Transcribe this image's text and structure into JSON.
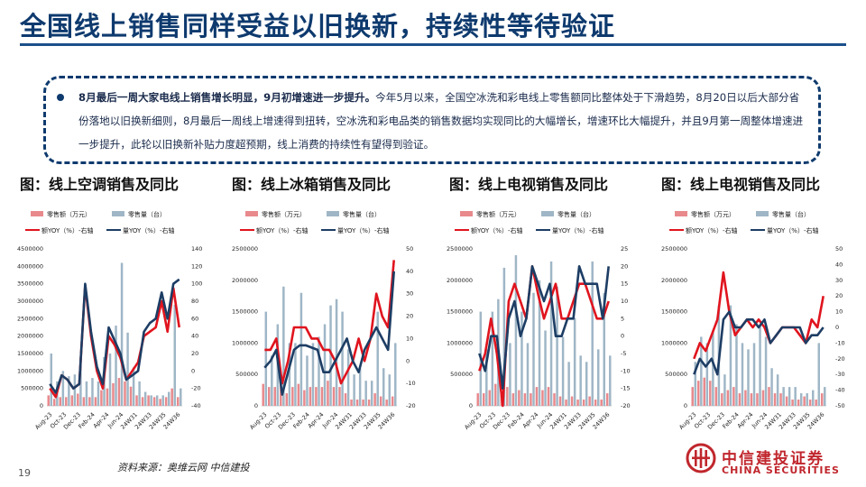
{
  "page": {
    "title": "全国线上销售同样受益以旧换新，持续性等待验证",
    "summary_lead": "8月最后一周大家电线上销售增长明显，9月初增速进一步提升。",
    "summary_body": "今年5月以来，全国空冰洗和彩电线上零售额同比整体处于下滑趋势，8月20日以后大部分省份落地以旧换新细则，8月最后一周线上增速得到扭转，空冰洗和彩电品类的销售数据均实现同比的大幅增长，增速环比大幅提升，并且9月第一周整体增速进一步提升，此轮以旧换新补贴力度超预期，线上消费的持续性有望得到验证。",
    "source": "资料来源：奥维云网    中信建投",
    "page_number": "19",
    "logo_cn": "中信建投证券",
    "logo_en": "CHINA SECURITIES"
  },
  "colors": {
    "title": "#0e3a6e",
    "amount_bar": "#e8898c",
    "volume_bar": "#9fb6c6",
    "amount_yoy_line": "#e0141e",
    "volume_yoy_line": "#1d3d64",
    "brand": "#c0272d"
  },
  "chart_data": [
    {
      "type": "bar",
      "title": "图：线上空调销售及同比",
      "legend": [
        "零售额（万元）",
        "零售量（台）",
        "额YOY（%）-右轴",
        "量YOY（%）-右轴"
      ],
      "x_tick_labels": [
        "Aug-23",
        "Oct-23",
        "Dec-23",
        "Feb-24",
        "Apr-24",
        "Jun-24",
        "24W31",
        "24W33",
        "24W35",
        "24W36"
      ],
      "ylim_left": [
        0,
        4500000
      ],
      "yticks_left": [
        0,
        500000,
        1000000,
        1500000,
        2000000,
        2500000,
        3000000,
        3500000,
        4000000,
        4500000
      ],
      "ylim_right": [
        -40,
        140
      ],
      "yticks_right": [
        -40,
        -20,
        0,
        20,
        40,
        60,
        80,
        100,
        120,
        140
      ],
      "series": [
        {
          "name": "零售额（万元）",
          "axis": "left",
          "kind": "bar",
          "values": [
            300000,
            200000,
            250000,
            250000,
            300000,
            350000,
            250000,
            250000,
            250000,
            450000,
            500000,
            650000,
            800000,
            700000,
            550000,
            300000,
            250000,
            300000,
            250000,
            200000,
            250000,
            500000,
            250000
          ]
        },
        {
          "name": "零售量（台）",
          "axis": "left",
          "kind": "bar",
          "values": [
            1500000,
            700000,
            1000000,
            850000,
            900000,
            1400000,
            700000,
            800000,
            700000,
            1400000,
            1500000,
            2300000,
            4100000,
            2100000,
            1100000,
            700000,
            400000,
            300000,
            300000,
            300000,
            400000,
            2900000,
            500000
          ]
        },
        {
          "name": "额YOY（%）-右轴",
          "axis": "right",
          "kind": "line",
          "values": [
            -20,
            -30,
            -5,
            -10,
            -20,
            -15,
            98,
            40,
            0,
            -20,
            40,
            30,
            15,
            -10,
            0,
            10,
            40,
            45,
            50,
            80,
            45,
            95,
            50
          ]
        },
        {
          "name": "量YOY（%）-右轴",
          "axis": "right",
          "kind": "line",
          "values": [
            -15,
            -25,
            -5,
            -10,
            -20,
            -15,
            100,
            45,
            5,
            -15,
            50,
            35,
            20,
            -10,
            -5,
            0,
            45,
            55,
            60,
            90,
            60,
            100,
            105
          ]
        }
      ]
    },
    {
      "type": "bar",
      "title": "图：线上冰箱销售及同比",
      "legend": [
        "零售额（万元）",
        "零售量（台）",
        "额YOY（%）-右轴",
        "量YOY（%）-右轴"
      ],
      "x_tick_labels": [
        "Aug-23",
        "Oct-23",
        "Dec-23",
        "Feb-24",
        "Apr-24",
        "Jun-24",
        "24W31",
        "24W33",
        "24W35",
        "24W36"
      ],
      "ylim_left": [
        0,
        2500000
      ],
      "yticks_left": [
        0,
        500000,
        1000000,
        1500000,
        2000000,
        2500000
      ],
      "ylim_right": [
        -20,
        50
      ],
      "yticks_right": [
        -20,
        -10,
        0,
        10,
        20,
        30,
        40,
        50
      ],
      "series": [
        {
          "name": "零售额（万元）",
          "axis": "left",
          "kind": "bar",
          "values": [
            350000,
            300000,
            300000,
            350000,
            200000,
            300000,
            350000,
            250000,
            300000,
            300000,
            300000,
            400000,
            300000,
            300000,
            200000,
            100000,
            100000,
            100000,
            100000,
            200000,
            150000,
            100000,
            150000
          ]
        },
        {
          "name": "零售量（台）",
          "axis": "left",
          "kind": "bar",
          "values": [
            1500000,
            800000,
            1300000,
            1900000,
            1000000,
            1000000,
            1800000,
            800000,
            1000000,
            1100000,
            1300000,
            1600000,
            1700000,
            1500000,
            900000,
            500000,
            600000,
            400000,
            400000,
            1500000,
            600000,
            500000,
            1000000
          ]
        },
        {
          "name": "额YOY（%）-右轴",
          "axis": "right",
          "kind": "line",
          "values": [
            5,
            5,
            10,
            -10,
            0,
            15,
            15,
            15,
            10,
            10,
            5,
            5,
            0,
            -10,
            -5,
            0,
            10,
            0,
            10,
            30,
            20,
            15,
            45
          ]
        },
        {
          "name": "量YOY（%）-右轴",
          "axis": "right",
          "kind": "line",
          "values": [
            -3,
            0,
            5,
            -15,
            -5,
            5,
            7,
            7,
            6,
            5,
            -5,
            -5,
            0,
            5,
            10,
            0,
            -5,
            5,
            10,
            15,
            10,
            5,
            40
          ]
        }
      ]
    },
    {
      "type": "bar",
      "title": "图：线上电视销售及同比",
      "legend": [
        "零售额（万元）",
        "零售量（台）",
        "额YOY（%）-右轴",
        "量YOY（%）-右轴"
      ],
      "x_tick_labels": [
        "Aug-23",
        "Oct-23",
        "Dec-23",
        "Feb-24",
        "Apr-24",
        "Jun-24",
        "24W31",
        "24W33",
        "24W35",
        "24W36"
      ],
      "ylim_left": [
        0,
        2500000
      ],
      "yticks_left": [
        0,
        500000,
        1000000,
        1500000,
        2000000,
        2500000
      ],
      "ylim_right": [
        -20,
        25
      ],
      "yticks_right": [
        -20,
        -15,
        -10,
        -5,
        0,
        5,
        10,
        15,
        20,
        25
      ],
      "series": [
        {
          "name": "零售额（万元）",
          "axis": "left",
          "kind": "bar",
          "values": [
            200000,
            200000,
            250000,
            350000,
            200000,
            300000,
            200000,
            250000,
            200000,
            200000,
            300000,
            250000,
            300000,
            200000,
            150000,
            100000,
            150000,
            100000,
            100000,
            150000,
            100000,
            100000,
            200000
          ]
        },
        {
          "name": "零售量（台）",
          "axis": "left",
          "kind": "bar",
          "values": [
            1500000,
            900000,
            1500000,
            1700000,
            2200000,
            1000000,
            2400000,
            1500000,
            1000000,
            1800000,
            2000000,
            1200000,
            2300000,
            1900000,
            1100000,
            700000,
            1400000,
            800000,
            700000,
            2300000,
            900000,
            1800000,
            800000
          ]
        },
        {
          "name": "额YOY（%）-右轴",
          "axis": "right",
          "kind": "line",
          "values": [
            -10,
            -5,
            5,
            -5,
            -20,
            10,
            15,
            10,
            5,
            20,
            12,
            5,
            10,
            15,
            5,
            5,
            10,
            15,
            15,
            10,
            5,
            5,
            10
          ]
        },
        {
          "name": "量YOY（%）-右轴",
          "axis": "right",
          "kind": "line",
          "values": [
            -5,
            -10,
            0,
            0,
            -15,
            5,
            10,
            0,
            5,
            20,
            15,
            10,
            15,
            0,
            0,
            5,
            5,
            20,
            15,
            15,
            15,
            5,
            20
          ]
        }
      ]
    },
    {
      "type": "bar",
      "title": "图：线上电视销售及同比",
      "legend": [
        "零售额（万元）",
        "零售量（台）",
        "额YOY（%）-右轴",
        "量YOY（%）-右轴"
      ],
      "x_tick_labels": [
        "Aug-23",
        "Oct-23",
        "Dec-23",
        "Feb-24",
        "Apr-24",
        "Jun-24",
        "24W31",
        "24W33",
        "24W35",
        "24W36"
      ],
      "ylim_left": [
        0,
        2500000
      ],
      "yticks_left": [
        0,
        500000,
        1000000,
        1500000,
        2000000,
        2500000
      ],
      "ylim_right": [
        -50,
        50
      ],
      "yticks_right": [
        -50,
        -40,
        -30,
        -20,
        -10,
        0,
        10,
        20,
        30,
        40,
        50
      ],
      "series": [
        {
          "name": "零售额（万元）",
          "axis": "left",
          "kind": "bar",
          "values": [
            300000,
            400000,
            450000,
            400000,
            300000,
            200000,
            250000,
            300000,
            200000,
            250000,
            200000,
            200000,
            250000,
            300000,
            200000,
            200000,
            150000,
            100000,
            100000,
            150000,
            100000,
            100000,
            200000
          ]
        },
        {
          "name": "零售量（台）",
          "axis": "left",
          "kind": "bar",
          "values": [
            700000,
            1100000,
            1000000,
            1200000,
            1600000,
            500000,
            1600000,
            1300000,
            1000000,
            900000,
            1000000,
            1300000,
            1100000,
            600000,
            500000,
            300000,
            300000,
            300000,
            200000,
            200000,
            250000,
            1000000,
            300000
          ]
        },
        {
          "name": "额YOY（%）-右轴",
          "axis": "right",
          "kind": "line",
          "values": [
            -20,
            -10,
            -15,
            -5,
            5,
            35,
            10,
            -5,
            0,
            5,
            0,
            5,
            0,
            -10,
            -5,
            0,
            0,
            0,
            -5,
            -10,
            5,
            0,
            20
          ]
        },
        {
          "name": "量YOY（%）-右轴",
          "axis": "right",
          "kind": "line",
          "values": [
            -30,
            -20,
            -25,
            -20,
            -30,
            5,
            10,
            0,
            0,
            5,
            5,
            0,
            5,
            -10,
            -5,
            0,
            0,
            0,
            0,
            -10,
            -5,
            -5,
            0
          ]
        }
      ]
    }
  ]
}
